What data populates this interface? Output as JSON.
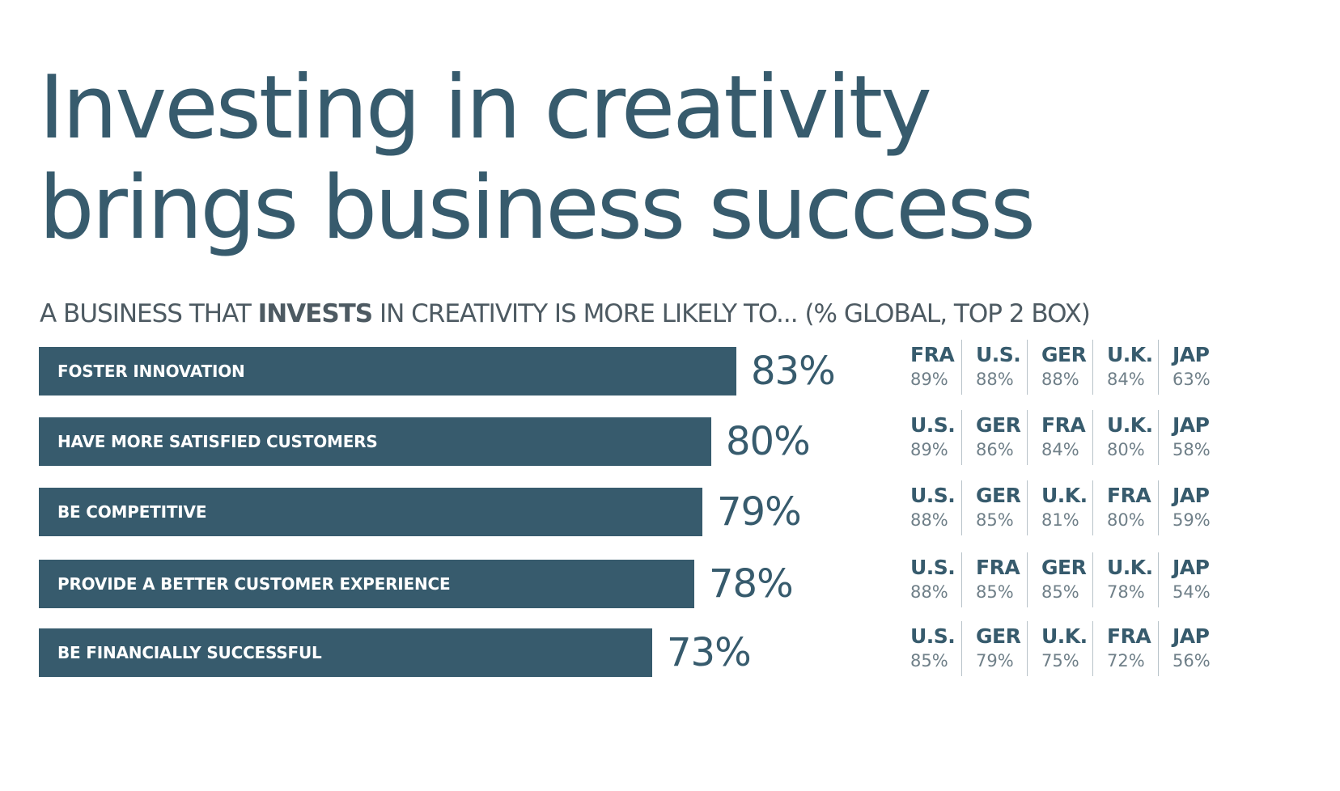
{
  "title_line1": "Investing in creativity",
  "title_line2": "brings business success",
  "subtitle": {
    "before": "A BUSINESS THAT ",
    "bold": "INVESTS",
    "after": " IN CREATIVITY IS MORE LIKELY TO... (% GLOBAL, TOP 2 BOX)"
  },
  "colors": {
    "bar": "#375b6d",
    "text_dark": "#375b6d",
    "text_muted": "#6f7f88"
  },
  "chart_data": {
    "type": "bar",
    "orientation": "horizontal",
    "title": "Investing in creativity brings business success",
    "subtitle": "A BUSINESS THAT INVESTS IN CREATIVITY IS MORE LIKELY TO... (% GLOBAL, TOP 2 BOX)",
    "xlim": [
      0,
      100
    ],
    "categories": [
      "FOSTER INNOVATION",
      "HAVE MORE SATISFIED CUSTOMERS",
      "BE COMPETITIVE",
      "PROVIDE A BETTER CUSTOMER EXPERIENCE",
      "BE FINANCIALLY SUCCESSFUL"
    ],
    "values": [
      83,
      80,
      79,
      78,
      73
    ],
    "value_labels": [
      "83%",
      "80%",
      "79%",
      "78%",
      "73%"
    ],
    "country_breakdown": [
      [
        {
          "country": "FRA",
          "value": 89,
          "label": "89%"
        },
        {
          "country": "U.S.",
          "value": 88,
          "label": "88%"
        },
        {
          "country": "GER",
          "value": 88,
          "label": "88%"
        },
        {
          "country": "U.K.",
          "value": 84,
          "label": "84%"
        },
        {
          "country": "JAP",
          "value": 63,
          "label": "63%"
        }
      ],
      [
        {
          "country": "U.S.",
          "value": 89,
          "label": "89%"
        },
        {
          "country": "GER",
          "value": 86,
          "label": "86%"
        },
        {
          "country": "FRA",
          "value": 84,
          "label": "84%"
        },
        {
          "country": "U.K.",
          "value": 80,
          "label": "80%"
        },
        {
          "country": "JAP",
          "value": 58,
          "label": "58%"
        }
      ],
      [
        {
          "country": "U.S.",
          "value": 88,
          "label": "88%"
        },
        {
          "country": "GER",
          "value": 85,
          "label": "85%"
        },
        {
          "country": "U.K.",
          "value": 81,
          "label": "81%"
        },
        {
          "country": "FRA",
          "value": 80,
          "label": "80%"
        },
        {
          "country": "JAP",
          "value": 59,
          "label": "59%"
        }
      ],
      [
        {
          "country": "U.S.",
          "value": 88,
          "label": "88%"
        },
        {
          "country": "FRA",
          "value": 85,
          "label": "85%"
        },
        {
          "country": "GER",
          "value": 85,
          "label": "85%"
        },
        {
          "country": "U.K.",
          "value": 78,
          "label": "78%"
        },
        {
          "country": "JAP",
          "value": 54,
          "label": "54%"
        }
      ],
      [
        {
          "country": "U.S.",
          "value": 85,
          "label": "85%"
        },
        {
          "country": "GER",
          "value": 79,
          "label": "79%"
        },
        {
          "country": "U.K.",
          "value": 75,
          "label": "75%"
        },
        {
          "country": "FRA",
          "value": 72,
          "label": "72%"
        },
        {
          "country": "JAP",
          "value": 56,
          "label": "56%"
        }
      ]
    ]
  }
}
